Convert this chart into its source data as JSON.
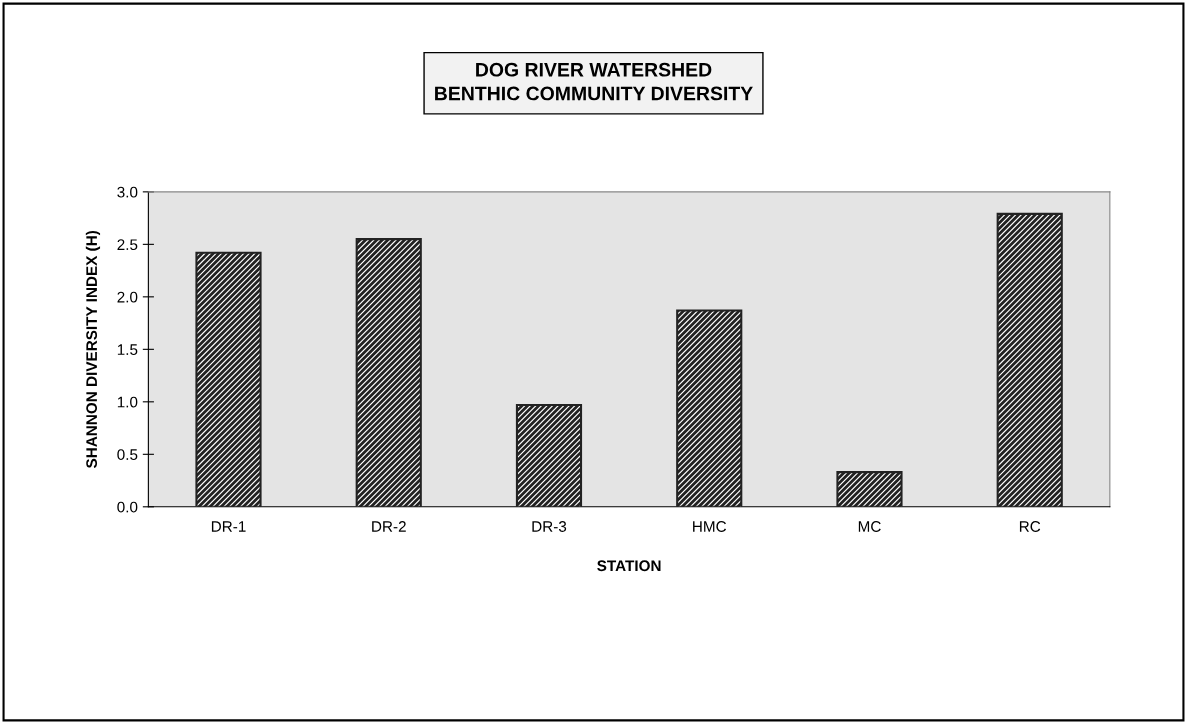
{
  "chart_data": {
    "type": "bar",
    "title": "DOG RIVER WATERSHED\nBENTHIC COMMUNITY DIVERSITY",
    "xlabel": "STATION",
    "ylabel": "SHANNON DIVERSITY INDEX (H)",
    "categories": [
      "DR-1",
      "DR-2",
      "DR-3",
      "HMC",
      "MC",
      "RC"
    ],
    "values": [
      2.42,
      2.55,
      0.97,
      1.87,
      0.33,
      2.79
    ],
    "color": "#222222",
    "ylim": [
      0,
      3
    ],
    "yticks": [
      {
        "value": 0,
        "label": "0.0"
      },
      {
        "value": 0.5,
        "label": "0.5"
      },
      {
        "value": 1,
        "label": "1.0"
      },
      {
        "value": 1.5,
        "label": "1.5"
      },
      {
        "value": 2,
        "label": "2.0"
      },
      {
        "value": 2.5,
        "label": "2.5"
      },
      {
        "value": 3,
        "label": "3.0"
      }
    ],
    "grid": false
  }
}
